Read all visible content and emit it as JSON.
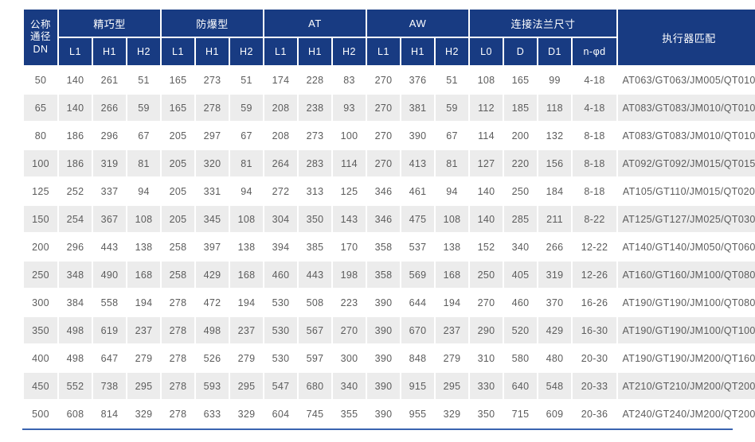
{
  "table": {
    "header": {
      "dn_label": "公称\n通径\nDN",
      "groups": [
        {
          "label": "精巧型",
          "cols": [
            "L1",
            "H1",
            "H2"
          ]
        },
        {
          "label": "防爆型",
          "cols": [
            "L1",
            "H1",
            "H2"
          ]
        },
        {
          "label": "AT",
          "cols": [
            "L1",
            "H1",
            "H2"
          ]
        },
        {
          "label": "AW",
          "cols": [
            "L1",
            "H1",
            "H2"
          ]
        },
        {
          "label": "连接法兰尺寸",
          "cols": [
            "L0",
            "D",
            "D1",
            "n-φd"
          ]
        }
      ],
      "actuator_label": "执行器匹配"
    },
    "rows": [
      [
        "50",
        "140",
        "261",
        "51",
        "165",
        "273",
        "51",
        "174",
        "228",
        "83",
        "270",
        "376",
        "51",
        "108",
        "165",
        "99",
        "4-18",
        "AT063/GT063/JM005/QT010"
      ],
      [
        "65",
        "140",
        "266",
        "59",
        "165",
        "278",
        "59",
        "208",
        "238",
        "93",
        "270",
        "381",
        "59",
        "112",
        "185",
        "118",
        "4-18",
        "AT083/GT083/JM010/QT010"
      ],
      [
        "80",
        "186",
        "296",
        "67",
        "205",
        "297",
        "67",
        "208",
        "273",
        "100",
        "270",
        "390",
        "67",
        "114",
        "200",
        "132",
        "8-18",
        "AT083/GT083/JM010/QT010"
      ],
      [
        "100",
        "186",
        "319",
        "81",
        "205",
        "320",
        "81",
        "264",
        "283",
        "114",
        "270",
        "413",
        "81",
        "127",
        "220",
        "156",
        "8-18",
        "AT092/GT092/JM015/QT015"
      ],
      [
        "125",
        "252",
        "337",
        "94",
        "205",
        "331",
        "94",
        "272",
        "313",
        "125",
        "346",
        "461",
        "94",
        "140",
        "250",
        "184",
        "8-18",
        "AT105/GT110/JM015/QT020"
      ],
      [
        "150",
        "254",
        "367",
        "108",
        "205",
        "345",
        "108",
        "304",
        "350",
        "143",
        "346",
        "475",
        "108",
        "140",
        "285",
        "211",
        "8-22",
        "AT125/GT127/JM025/QT030"
      ],
      [
        "200",
        "296",
        "443",
        "138",
        "258",
        "397",
        "138",
        "394",
        "385",
        "170",
        "358",
        "537",
        "138",
        "152",
        "340",
        "266",
        "12-22",
        "AT140/GT140/JM050/QT060"
      ],
      [
        "250",
        "348",
        "490",
        "168",
        "258",
        "429",
        "168",
        "460",
        "443",
        "198",
        "358",
        "569",
        "168",
        "250",
        "405",
        "319",
        "12-26",
        "AT160/GT160/JM100/QT080"
      ],
      [
        "300",
        "384",
        "558",
        "194",
        "278",
        "472",
        "194",
        "530",
        "508",
        "223",
        "390",
        "644",
        "194",
        "270",
        "460",
        "370",
        "16-26",
        "AT190/GT190/JM100/QT080"
      ],
      [
        "350",
        "498",
        "619",
        "237",
        "278",
        "498",
        "237",
        "530",
        "567",
        "270",
        "390",
        "670",
        "237",
        "290",
        "520",
        "429",
        "16-30",
        "AT190/GT190/JM100/QT100"
      ],
      [
        "400",
        "498",
        "647",
        "279",
        "278",
        "526",
        "279",
        "530",
        "597",
        "300",
        "390",
        "848",
        "279",
        "310",
        "580",
        "480",
        "20-30",
        "AT190/GT190/JM200/QT160"
      ],
      [
        "450",
        "552",
        "738",
        "295",
        "278",
        "593",
        "295",
        "547",
        "680",
        "340",
        "390",
        "915",
        "295",
        "330",
        "640",
        "548",
        "20-33",
        "AT210/GT210/JM200/QT200"
      ],
      [
        "500",
        "608",
        "814",
        "329",
        "278",
        "633",
        "329",
        "604",
        "745",
        "355",
        "390",
        "955",
        "329",
        "350",
        "715",
        "609",
        "20-36",
        "AT240/GT240/JM200/QT200"
      ]
    ]
  },
  "colors": {
    "header_bg": "#183b82",
    "stripe_bg": "#ececec",
    "bottom_rule": "#3a64b0",
    "cell_text": "#5c5c5c"
  }
}
